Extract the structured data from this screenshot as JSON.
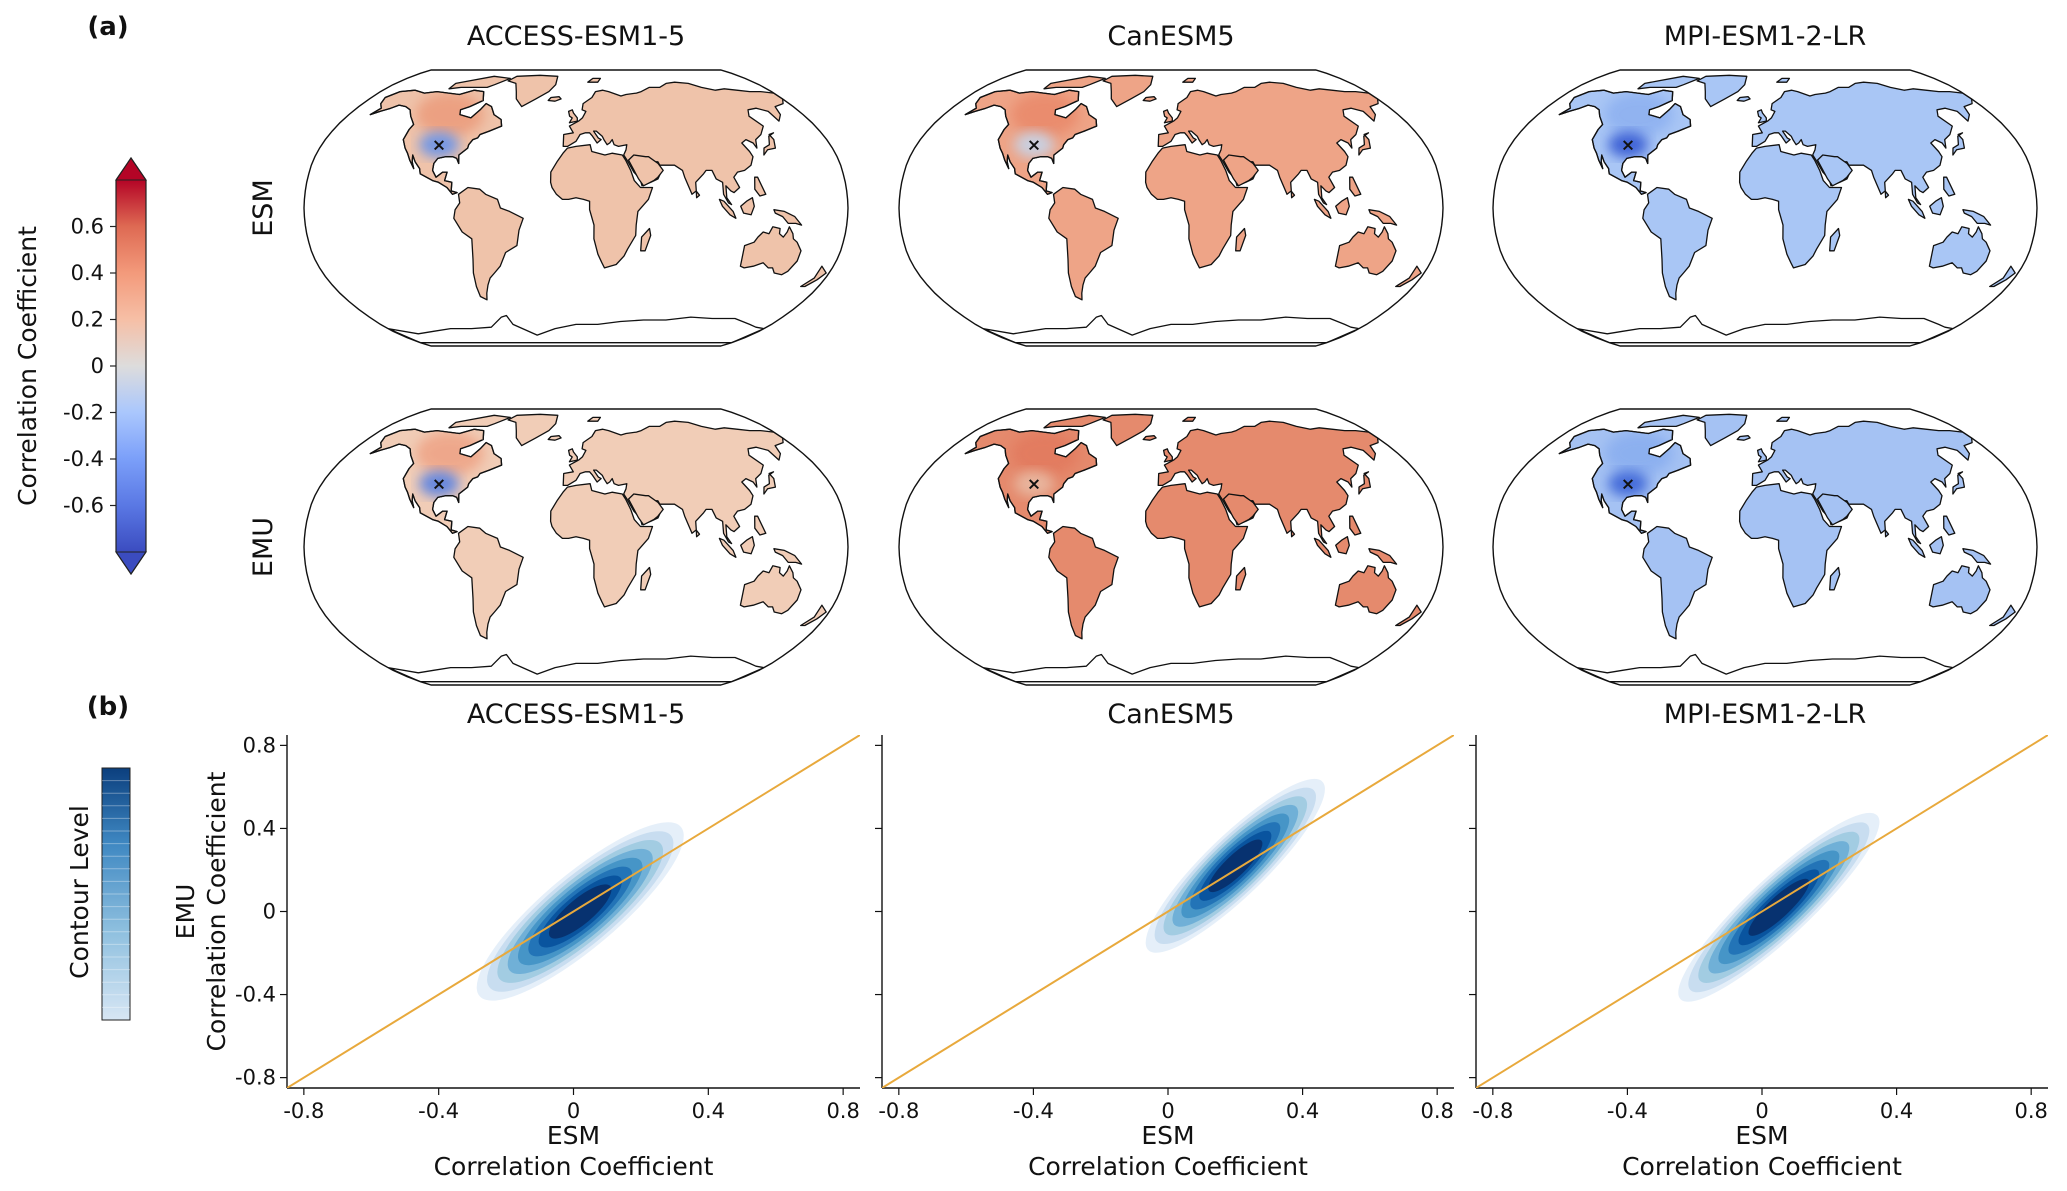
{
  "figure": {
    "panel_a_label": "(a)",
    "panel_b_label": "(b)",
    "models": [
      "ACCESS-ESM1-5",
      "CanESM5",
      "MPI-ESM1-2-LR"
    ],
    "row_labels": [
      "ESM",
      "EMU"
    ]
  },
  "colorbar_a": {
    "label": "Correlation Coefficient",
    "ticks": [
      0.6,
      0.4,
      0.2,
      0,
      -0.2,
      -0.4,
      -0.6
    ],
    "tick_labels": [
      "0.6",
      "0.4",
      "0.2",
      "0",
      "-0.2",
      "-0.4",
      "-0.6"
    ],
    "range": [
      -0.8,
      0.8
    ],
    "colormap": "coolwarm",
    "extend": "both"
  },
  "colorbar_b": {
    "label": "Contour Level",
    "colormap": "Blues"
  },
  "maps": [
    {
      "model": "ACCESS-ESM1-5",
      "row": "ESM",
      "land_color": "#efc3aa",
      "na_color": "#eb9d7e",
      "anomaly_color": "#6e95e6",
      "marker": "×"
    },
    {
      "model": "CanESM5",
      "row": "ESM",
      "land_color": "#eea487",
      "na_color": "#e98a6c",
      "anomaly_color": "#c8d2e4",
      "marker": "×"
    },
    {
      "model": "MPI-ESM1-2-LR",
      "row": "ESM",
      "land_color": "#a9c6f5",
      "na_color": "#8eb1f0",
      "anomaly_color": "#3a5fd4",
      "marker": "×"
    },
    {
      "model": "ACCESS-ESM1-5",
      "row": "EMU",
      "land_color": "#f1cdb7",
      "na_color": "#eea487",
      "anomaly_color": "#5e84e0",
      "marker": "×"
    },
    {
      "model": "CanESM5",
      "row": "EMU",
      "land_color": "#e58a6d",
      "na_color": "#e27a5e",
      "anomaly_color": "#e8b7a0",
      "marker": "×"
    },
    {
      "model": "MPI-ESM1-2-LR",
      "row": "EMU",
      "land_color": "#a5c2f3",
      "na_color": "#8aaeef",
      "anomaly_color": "#3f68d8",
      "marker": "×"
    }
  ],
  "chart_data": [
    {
      "type": "density_contour",
      "title": "ACCESS-ESM1-5",
      "xlabel": [
        "ESM",
        "Correlation Coefficient"
      ],
      "ylabel": [
        "EMU",
        "Correlation Coefficient"
      ],
      "xlim": [
        -0.85,
        0.85
      ],
      "ylim": [
        -0.85,
        0.85
      ],
      "xticks": [
        -0.8,
        -0.4,
        0,
        0.4,
        0.8
      ],
      "yticks": [
        -0.8,
        -0.4,
        0,
        0.4,
        0.8
      ],
      "xtick_labels": [
        "-0.8",
        "-0.4",
        "0",
        "0.4",
        "0.8"
      ],
      "ytick_labels": [
        "-0.8",
        "-0.4",
        "0",
        "0.4",
        "0.8"
      ],
      "one_to_one_line": true,
      "density": {
        "center": [
          0.02,
          0.0
        ],
        "x_range": [
          -0.35,
          0.45
        ],
        "y_range": [
          -0.3,
          0.4
        ],
        "angle_deg": 40,
        "spread_major": 0.39,
        "spread_minor": 0.11
      }
    },
    {
      "type": "density_contour",
      "title": "CanESM5",
      "xlabel": [
        "ESM",
        "Correlation Coefficient"
      ],
      "xlim": [
        -0.85,
        0.85
      ],
      "ylim": [
        -0.85,
        0.85
      ],
      "xticks": [
        -0.8,
        -0.4,
        0,
        0.4,
        0.8
      ],
      "yticks": [
        -0.8,
        -0.4,
        0,
        0.4,
        0.8
      ],
      "xtick_labels": [
        "-0.8",
        "-0.4",
        "0",
        "0.4",
        "0.8"
      ],
      "one_to_one_line": true,
      "density": {
        "center": [
          0.2,
          0.22
        ],
        "x_range": [
          -0.2,
          0.47
        ],
        "y_range": [
          -0.2,
          0.49
        ],
        "angle_deg": 44,
        "spread_major": 0.36,
        "spread_minor": 0.09
      }
    },
    {
      "type": "density_contour",
      "title": "MPI-ESM1-2-LR",
      "xlabel": [
        "ESM",
        "Correlation Coefficient"
      ],
      "xlim": [
        -0.85,
        0.85
      ],
      "ylim": [
        -0.85,
        0.85
      ],
      "xticks": [
        -0.8,
        -0.4,
        0,
        0.4,
        0.8
      ],
      "yticks": [
        -0.8,
        -0.4,
        0,
        0.4,
        0.8
      ],
      "xtick_labels": [
        "-0.8",
        "-0.4",
        "0",
        "0.4",
        "0.8"
      ],
      "one_to_one_line": true,
      "density": {
        "center": [
          0.05,
          0.02
        ],
        "x_range": [
          -0.15,
          0.57
        ],
        "y_range": [
          -0.22,
          0.57
        ],
        "angle_deg": 43,
        "spread_major": 0.4,
        "spread_minor": 0.09
      }
    }
  ]
}
